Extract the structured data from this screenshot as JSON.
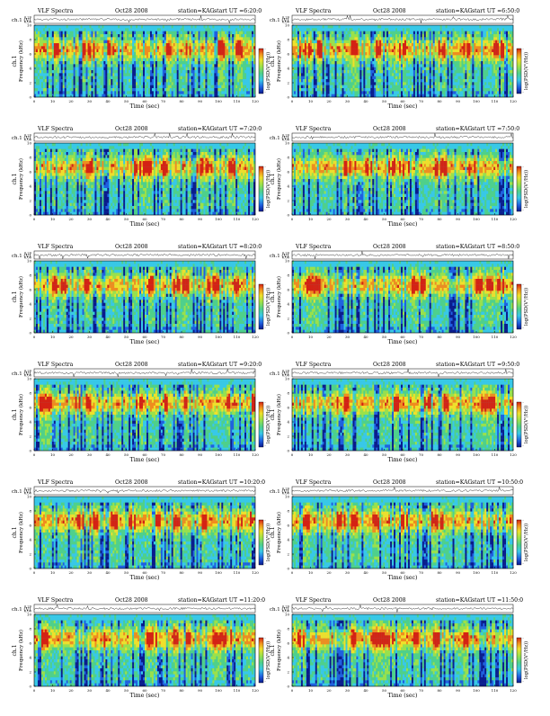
{
  "page": {
    "columns": 2,
    "rows": 6
  },
  "colors": {
    "spectrogram_colormap": [
      "#0a1a8c",
      "#1f5fe0",
      "#38c8e8",
      "#4fd08a",
      "#9be14a",
      "#f0e02a",
      "#f08c1e",
      "#d42214"
    ]
  },
  "chart_data": [
    {
      "type": "heatmap",
      "title": "VLF Spectra",
      "date": "Oct28 2008",
      "station": "station=KAG",
      "start": "start UT =6:20:0",
      "top_panel": {
        "ylabel": "ch.1 (V)",
        "yticks": [
          "0.00",
          "0.20"
        ]
      },
      "ylabel": "ch.1\nFrequency (kHz)",
      "xlabel": "Time (sec)",
      "xlim": [
        0,
        120
      ],
      "ylim": [
        0,
        10
      ],
      "xticks": [
        "0",
        "10",
        "20",
        "30",
        "40",
        "50",
        "60",
        "70",
        "80",
        "90",
        "100",
        "110",
        "120"
      ],
      "yticks": [
        "0",
        "2",
        "4",
        "6",
        "8",
        "10"
      ],
      "colorbar": {
        "label": "log(PSD(V²/Hz))"
      }
    },
    {
      "type": "heatmap",
      "title": "VLF Spectra",
      "date": "Oct28 2008",
      "station": "station=KAG",
      "start": "start UT =6:50:0",
      "top_panel": {
        "ylabel": "ch.1 (V)",
        "yticks": [
          "0.00",
          "0.20"
        ]
      },
      "ylabel": "ch.1\nFrequency (kHz)",
      "xlabel": "Time (sec)",
      "xlim": [
        0,
        120
      ],
      "ylim": [
        0,
        10
      ],
      "xticks": [
        "0",
        "10",
        "20",
        "30",
        "40",
        "50",
        "60",
        "70",
        "80",
        "90",
        "100",
        "110",
        "120"
      ],
      "yticks": [
        "0",
        "2",
        "4",
        "6",
        "8",
        "10"
      ],
      "colorbar": {
        "label": "log(PSD(V²/Hz))"
      }
    },
    {
      "type": "heatmap",
      "title": "VLF Spectra",
      "date": "Oct28 2008",
      "station": "station=KAG",
      "start": "start UT =7:20:0",
      "top_panel": {
        "ylabel": "ch.1 (V)",
        "yticks": [
          "0.00",
          "0.20"
        ]
      },
      "ylabel": "ch.1\nFrequency (kHz)",
      "xlabel": "Time (sec)",
      "xlim": [
        0,
        120
      ],
      "ylim": [
        0,
        10
      ],
      "xticks": [
        "0",
        "10",
        "20",
        "30",
        "40",
        "50",
        "60",
        "70",
        "80",
        "90",
        "100",
        "110",
        "120"
      ],
      "yticks": [
        "0",
        "2",
        "4",
        "6",
        "8",
        "10"
      ],
      "colorbar": {
        "label": "log(PSD(V²/Hz))"
      }
    },
    {
      "type": "heatmap",
      "title": "VLF Spectra",
      "date": "Oct28 2008",
      "station": "station=KAG",
      "start": "start UT =7:50:0",
      "top_panel": {
        "ylabel": "ch.1 (V)",
        "yticks": [
          "0.00",
          "0.20"
        ]
      },
      "ylabel": "ch.1\nFrequency (kHz)",
      "xlabel": "Time (sec)",
      "xlim": [
        0,
        120
      ],
      "ylim": [
        0,
        10
      ],
      "xticks": [
        "0",
        "10",
        "20",
        "30",
        "40",
        "50",
        "60",
        "70",
        "80",
        "90",
        "100",
        "110",
        "120"
      ],
      "yticks": [
        "0",
        "2",
        "4",
        "6",
        "8",
        "10"
      ],
      "colorbar": {
        "label": "log(PSD(V²/Hz))"
      }
    },
    {
      "type": "heatmap",
      "title": "VLF Spectra",
      "date": "Oct28 2008",
      "station": "station=KAG",
      "start": "start UT =8:20:0",
      "top_panel": {
        "ylabel": "ch.1 (V)",
        "yticks": [
          "0.00",
          "0.20"
        ]
      },
      "ylabel": "ch.1\nFrequency (kHz)",
      "xlabel": "Time (sec)",
      "xlim": [
        0,
        120
      ],
      "ylim": [
        0,
        10
      ],
      "xticks": [
        "0",
        "10",
        "20",
        "30",
        "40",
        "50",
        "60",
        "70",
        "80",
        "90",
        "100",
        "110",
        "120"
      ],
      "yticks": [
        "0",
        "2",
        "4",
        "6",
        "8",
        "10"
      ],
      "colorbar": {
        "label": "log(PSD(V²/Hz))"
      }
    },
    {
      "type": "heatmap",
      "title": "VLF Spectra",
      "date": "Oct28 2008",
      "station": "station=KAG",
      "start": "start UT =8:50:0",
      "top_panel": {
        "ylabel": "ch.1 (V)",
        "yticks": [
          "0.00",
          "0.20"
        ]
      },
      "ylabel": "ch.1\nFrequency (kHz)",
      "xlabel": "Time (sec)",
      "xlim": [
        0,
        120
      ],
      "ylim": [
        0,
        10
      ],
      "xticks": [
        "0",
        "10",
        "20",
        "30",
        "40",
        "50",
        "60",
        "70",
        "80",
        "90",
        "100",
        "110",
        "120"
      ],
      "yticks": [
        "0",
        "2",
        "4",
        "6",
        "8",
        "10"
      ],
      "colorbar": {
        "label": "log(PSD(V²/Hz))"
      }
    },
    {
      "type": "heatmap",
      "title": "VLF Spectra",
      "date": "Oct28 2008",
      "station": "station=KAG",
      "start": "start UT =9:20:0",
      "top_panel": {
        "ylabel": "ch.1 (V)",
        "yticks": [
          "0.00",
          "0.20"
        ]
      },
      "ylabel": "ch.1\nFrequency (kHz)",
      "xlabel": "Time (sec)",
      "xlim": [
        0,
        120
      ],
      "ylim": [
        0,
        10
      ],
      "xticks": [
        "0",
        "10",
        "20",
        "30",
        "40",
        "50",
        "60",
        "70",
        "80",
        "90",
        "100",
        "110",
        "120"
      ],
      "yticks": [
        "0",
        "2",
        "4",
        "6",
        "8",
        "10"
      ],
      "colorbar": {
        "label": "log(PSD(V²/Hz))"
      }
    },
    {
      "type": "heatmap",
      "title": "VLF Spectra",
      "date": "Oct28 2008",
      "station": "station=KAG",
      "start": "start UT =9:50:0",
      "top_panel": {
        "ylabel": "ch.1 (V)",
        "yticks": [
          "0.00",
          "0.20"
        ]
      },
      "ylabel": "ch.1\nFrequency (kHz)",
      "xlabel": "Time (sec)",
      "xlim": [
        0,
        120
      ],
      "ylim": [
        0,
        10
      ],
      "xticks": [
        "0",
        "10",
        "20",
        "30",
        "40",
        "50",
        "60",
        "70",
        "80",
        "90",
        "100",
        "110",
        "120"
      ],
      "yticks": [
        "0",
        "2",
        "4",
        "6",
        "8",
        "10"
      ],
      "colorbar": {
        "label": "log(PSD(V²/Hz))"
      }
    },
    {
      "type": "heatmap",
      "title": "VLF Spectra",
      "date": "Oct28 2008",
      "station": "station=KAG",
      "start": "start UT =10:20:0",
      "top_panel": {
        "ylabel": "ch.1 (V)",
        "yticks": [
          "0.00",
          "0.20"
        ]
      },
      "ylabel": "ch.1\nFrequency (kHz)",
      "xlabel": "Time (sec)",
      "xlim": [
        0,
        120
      ],
      "ylim": [
        0,
        10
      ],
      "xticks": [
        "0",
        "10",
        "20",
        "30",
        "40",
        "50",
        "60",
        "70",
        "80",
        "90",
        "100",
        "110",
        "120"
      ],
      "yticks": [
        "0",
        "2",
        "4",
        "6",
        "8",
        "10"
      ],
      "colorbar": {
        "label": "log(PSD(V²/Hz))"
      }
    },
    {
      "type": "heatmap",
      "title": "VLF Spectra",
      "date": "Oct28 2008",
      "station": "station=KAG",
      "start": "start UT =10:50:0",
      "top_panel": {
        "ylabel": "ch.1 (V)",
        "yticks": [
          "0.00",
          "0.20"
        ]
      },
      "ylabel": "ch.1\nFrequency (kHz)",
      "xlabel": "Time (sec)",
      "xlim": [
        0,
        120
      ],
      "ylim": [
        0,
        10
      ],
      "xticks": [
        "0",
        "10",
        "20",
        "30",
        "40",
        "50",
        "60",
        "70",
        "80",
        "90",
        "100",
        "110",
        "120"
      ],
      "yticks": [
        "0",
        "2",
        "4",
        "6",
        "8",
        "10"
      ],
      "colorbar": {
        "label": "log(PSD(V²/Hz))"
      }
    },
    {
      "type": "heatmap",
      "title": "VLF Spectra",
      "date": "Oct28 2008",
      "station": "station=KAG",
      "start": "start UT =11:20:0",
      "top_panel": {
        "ylabel": "ch.1 (V)",
        "yticks": [
          "0.00",
          "0.20"
        ]
      },
      "ylabel": "ch.1\nFrequency (kHz)",
      "xlabel": "Time (sec)",
      "xlim": [
        0,
        120
      ],
      "ylim": [
        0,
        10
      ],
      "xticks": [
        "0",
        "10",
        "20",
        "30",
        "40",
        "50",
        "60",
        "70",
        "80",
        "90",
        "100",
        "110",
        "120"
      ],
      "yticks": [
        "0",
        "2",
        "4",
        "6",
        "8",
        "10"
      ],
      "colorbar": {
        "label": "log(PSD(V²/Hz))"
      }
    },
    {
      "type": "heatmap",
      "title": "VLF Spectra",
      "date": "Oct28 2008",
      "station": "station=KAG",
      "start": "start UT =11:50:0",
      "top_panel": {
        "ylabel": "ch.1 (V)",
        "yticks": [
          "0.00",
          "0.20"
        ]
      },
      "ylabel": "ch.1\nFrequency (kHz)",
      "xlabel": "Time (sec)",
      "xlim": [
        0,
        120
      ],
      "ylim": [
        0,
        10
      ],
      "xticks": [
        "0",
        "10",
        "20",
        "30",
        "40",
        "50",
        "60",
        "70",
        "80",
        "90",
        "100",
        "110",
        "120"
      ],
      "yticks": [
        "0",
        "2",
        "4",
        "6",
        "8",
        "10"
      ],
      "colorbar": {
        "label": "log(PSD(V²/Hz))"
      }
    }
  ]
}
